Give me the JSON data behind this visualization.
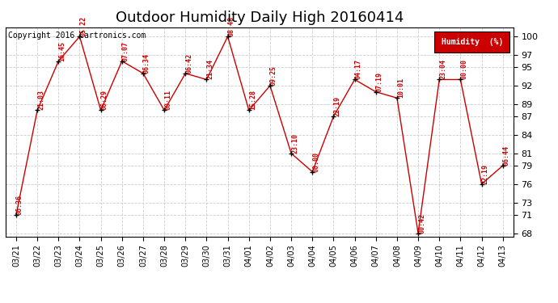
{
  "title": "Outdoor Humidity Daily High 20160414",
  "copyright": "Copyright 2016 Cartronics.com",
  "legend_label": "Humidity  (%)",
  "background_color": "#ffffff",
  "plot_bg_color": "#ffffff",
  "grid_color": "#cccccc",
  "line_color": "#cc0000",
  "label_color": "#cc0000",
  "legend_bg": "#cc0000",
  "legend_fg": "#ffffff",
  "dates": [
    "03/21",
    "03/22",
    "03/23",
    "03/24",
    "03/25",
    "03/26",
    "03/27",
    "03/28",
    "03/29",
    "03/30",
    "03/31",
    "04/01",
    "04/02",
    "04/03",
    "04/04",
    "04/05",
    "04/06",
    "04/07",
    "04/08",
    "04/09",
    "04/10",
    "04/11",
    "04/12",
    "04/13"
  ],
  "values": [
    71,
    88,
    96,
    100,
    88,
    96,
    94,
    88,
    94,
    93,
    100,
    88,
    92,
    81,
    78,
    87,
    93,
    91,
    90,
    68,
    93,
    93,
    76,
    79
  ],
  "times": [
    "06:36",
    "21:03",
    "16:45",
    "05:22",
    "06:29",
    "07:07",
    "06:34",
    "00:11",
    "06:42",
    "21:34",
    "08:48",
    "15:28",
    "09:25",
    "23:10",
    "00:00",
    "22:19",
    "04:17",
    "07:19",
    "10:01",
    "00:42",
    "23:04",
    "00:00",
    "22:19",
    "06:44"
  ],
  "ylim_min": 68,
  "ylim_max": 101,
  "yticks": [
    68,
    71,
    73,
    76,
    79,
    81,
    84,
    87,
    89,
    92,
    95,
    97,
    100
  ],
  "title_fontsize": 13,
  "label_fontsize": 6,
  "tick_fontsize": 8,
  "copyright_fontsize": 7
}
